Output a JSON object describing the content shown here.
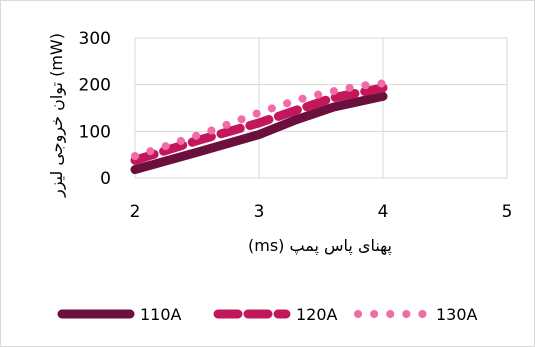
{
  "chart_data": {
    "type": "line",
    "xlabel": "پهنای پاس پمپ (ms)",
    "ylabel": "توان خروجی لیزر (mW)",
    "xlim": [
      2,
      5
    ],
    "ylim": [
      0,
      300
    ],
    "x_ticks": [
      "2",
      "3",
      "4",
      "5"
    ],
    "y_ticks": [
      "0",
      "100",
      "200",
      "300"
    ],
    "grid": true,
    "legend_position": "bottom",
    "series": [
      {
        "name": "110A",
        "color": "#6b0f3c",
        "style": "solid",
        "x": [
          2.0,
          2.5,
          3.0,
          3.3,
          3.6,
          4.0
        ],
        "y": [
          18,
          55,
          93,
          125,
          152,
          175
        ]
      },
      {
        "name": "120A",
        "color": "#c2185b",
        "style": "dashed",
        "x": [
          2.0,
          2.5,
          3.0,
          3.3,
          3.6,
          4.0
        ],
        "y": [
          38,
          80,
          118,
          145,
          172,
          193
        ]
      },
      {
        "name": "130A",
        "color": "#f06ba8",
        "style": "dotted",
        "x": [
          2.0,
          2.2,
          2.4,
          2.6,
          2.8,
          3.0,
          3.2,
          3.4,
          3.6,
          3.8,
          4.0
        ],
        "y": [
          47,
          64,
          82,
          100,
          120,
          140,
          158,
          174,
          186,
          197,
          203
        ]
      }
    ]
  }
}
